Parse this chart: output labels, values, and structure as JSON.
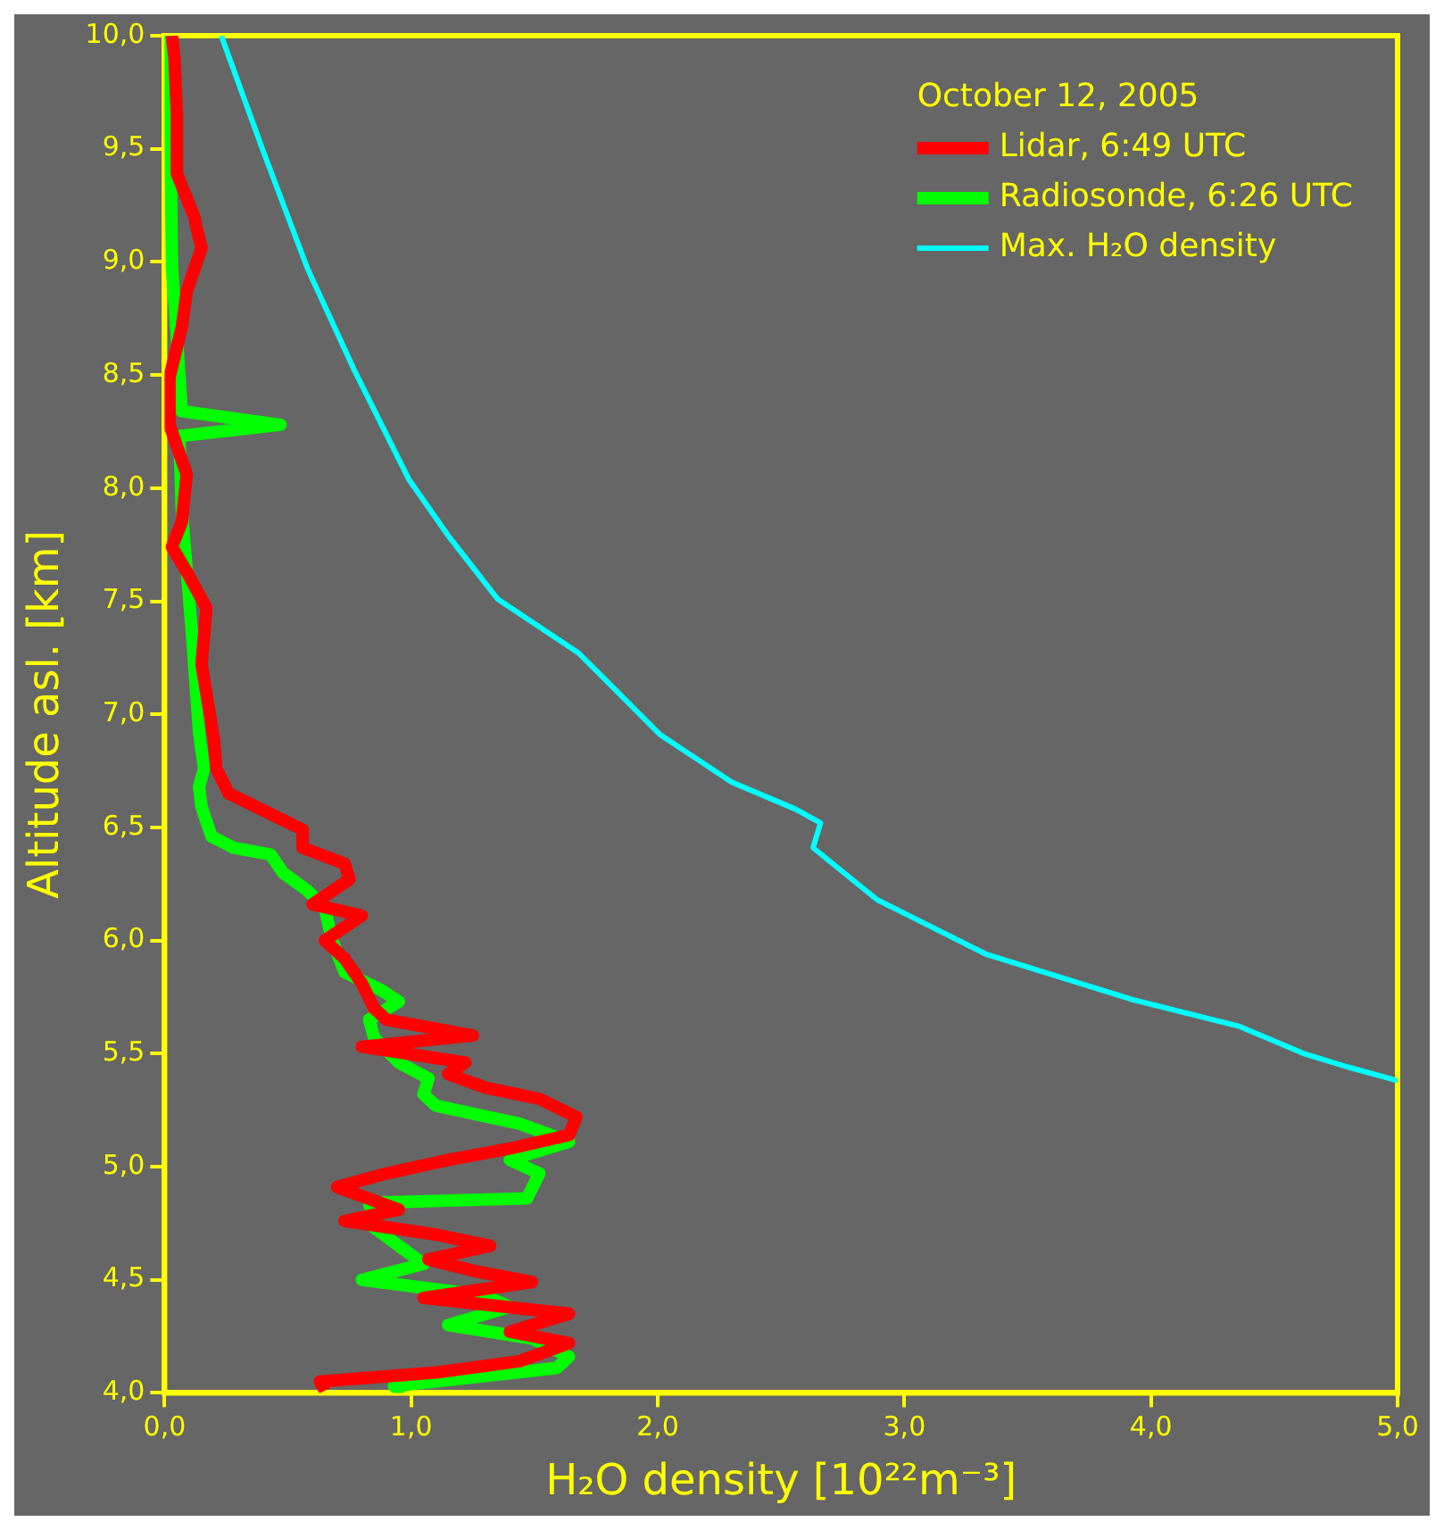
{
  "chart_data": {
    "type": "line",
    "xlabel": "H₂O density [10²²m⁻³]",
    "ylabel": "Altitude asl. [km]",
    "legend_title": "October 12, 2005",
    "legend": "top right",
    "grid": false,
    "marker": "none",
    "line_style": "solid",
    "xlim": [
      0,
      5
    ],
    "xticks": [
      {
        "value": 0,
        "label": "0,0"
      },
      {
        "value": 1,
        "label": "1,0"
      },
      {
        "value": 2,
        "label": "2,0"
      },
      {
        "value": 3,
        "label": "3,0"
      },
      {
        "value": 4,
        "label": "4,0"
      },
      {
        "value": 5,
        "label": "5,0"
      }
    ],
    "ylim": [
      4,
      10
    ],
    "yticks": [
      {
        "value": 4,
        "label": "4,0"
      },
      {
        "value": 4.5,
        "label": "4,5"
      },
      {
        "value": 5,
        "label": "5,0"
      },
      {
        "value": 5.5,
        "label": "5,5"
      },
      {
        "value": 6,
        "label": "6,0"
      },
      {
        "value": 6.5,
        "label": "6,5"
      },
      {
        "value": 7,
        "label": "7,0"
      },
      {
        "value": 7.5,
        "label": "7,5"
      },
      {
        "value": 8,
        "label": "8,0"
      },
      {
        "value": 8.5,
        "label": "8,5"
      },
      {
        "value": 9,
        "label": "9,0"
      },
      {
        "value": 9.5,
        "label": "9,5"
      },
      {
        "value": 10,
        "label": "10,0"
      }
    ],
    "series": [
      {
        "name": "Lidar, 6:49 UTC",
        "color": "#ff0000",
        "x": [
          0.65,
          0.63,
          1.1,
          1.44,
          1.64,
          1.4,
          1.64,
          1.05,
          1.49,
          1.25,
          1.07,
          1.32,
          1.1,
          0.73,
          0.95,
          0.7,
          0.9,
          1.15,
          1.4,
          1.64,
          1.67,
          1.52,
          1.3,
          1.15,
          1.22,
          0.8,
          1.25,
          0.9,
          0.85,
          0.8,
          0.73,
          0.65,
          0.8,
          0.6,
          0.75,
          0.73,
          0.56,
          0.56,
          0.41,
          0.26,
          0.21,
          0.2,
          0.17,
          0.15,
          0.17,
          0.09,
          0.03,
          0.07,
          0.09,
          0.02,
          0.02,
          0.07,
          0.09,
          0.15,
          0.12,
          0.05,
          0.05,
          0.04,
          0.03
        ],
        "values": [
          4.01,
          4.05,
          4.09,
          4.14,
          4.22,
          4.27,
          4.35,
          4.42,
          4.49,
          4.54,
          4.59,
          4.65,
          4.7,
          4.76,
          4.81,
          4.91,
          4.97,
          5.03,
          5.08,
          5.14,
          5.22,
          5.3,
          5.35,
          5.41,
          5.46,
          5.53,
          5.58,
          5.65,
          5.7,
          5.81,
          5.92,
          6.0,
          6.11,
          6.16,
          6.27,
          6.34,
          6.41,
          6.49,
          6.57,
          6.65,
          6.76,
          6.89,
          7.09,
          7.22,
          7.47,
          7.63,
          7.74,
          7.85,
          8.06,
          8.28,
          8.49,
          8.71,
          8.87,
          9.06,
          9.2,
          9.39,
          9.66,
          9.9,
          10.0
        ]
      },
      {
        "name": "Radiosonde, 6:26 UTC",
        "color": "#00ff00",
        "x": [
          0.97,
          0.93,
          1.59,
          1.64,
          1.49,
          1.15,
          1.4,
          1.3,
          0.8,
          1.05,
          0.95,
          0.85,
          0.83,
          1.47,
          1.52,
          1.4,
          1.64,
          1.44,
          1.1,
          1.05,
          1.07,
          0.95,
          0.85,
          0.83,
          0.95,
          0.88,
          0.73,
          0.68,
          0.65,
          0.58,
          0.48,
          0.43,
          0.28,
          0.19,
          0.15,
          0.14,
          0.16,
          0.14,
          0.11,
          0.07,
          0.06,
          0.47,
          0.07,
          0.03,
          0.02,
          0.02
        ],
        "values": [
          4.0,
          4.03,
          4.11,
          4.16,
          4.24,
          4.3,
          4.38,
          4.43,
          4.5,
          4.57,
          4.65,
          4.73,
          4.84,
          4.86,
          4.97,
          5.03,
          5.11,
          5.19,
          5.27,
          5.32,
          5.39,
          5.46,
          5.57,
          5.65,
          5.73,
          5.78,
          5.86,
          6.0,
          6.14,
          6.22,
          6.3,
          6.38,
          6.41,
          6.46,
          6.59,
          6.68,
          6.76,
          6.92,
          7.37,
          7.9,
          8.23,
          8.28,
          8.34,
          8.98,
          9.98,
          10.0
        ]
      },
      {
        "name": "Max. H₂O density",
        "color": "#00ffff",
        "x": [
          0.23,
          0.4,
          0.58,
          0.77,
          0.99,
          1.15,
          1.35,
          1.68,
          2.01,
          2.3,
          2.56,
          2.66,
          2.63,
          2.89,
          3.33,
          3.92,
          4.36,
          4.62,
          4.8,
          5.0
        ],
        "values": [
          10.0,
          9.49,
          8.97,
          8.52,
          8.04,
          7.79,
          7.51,
          7.27,
          6.91,
          6.7,
          6.58,
          6.52,
          6.41,
          6.18,
          5.94,
          5.74,
          5.62,
          5.5,
          5.44,
          5.38
        ]
      }
    ]
  }
}
